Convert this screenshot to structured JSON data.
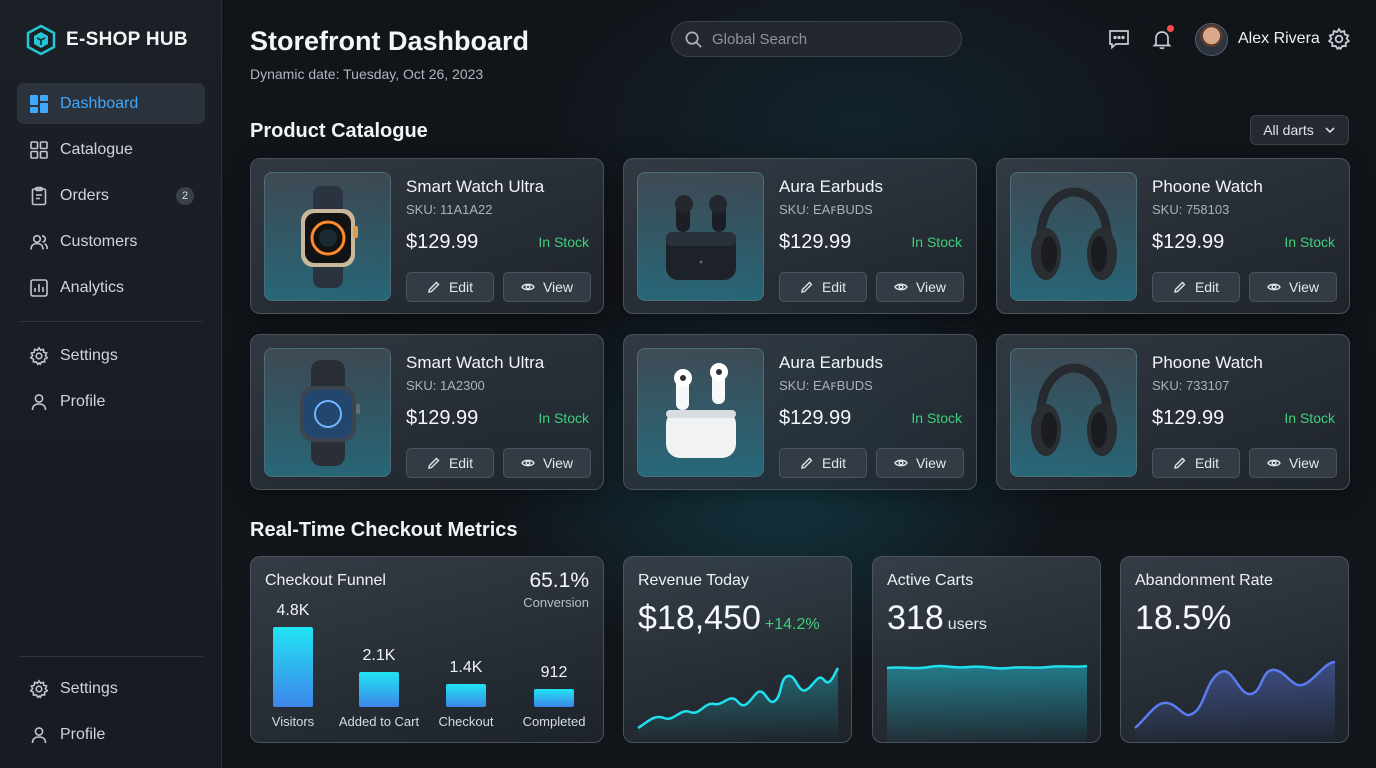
{
  "brand": {
    "name": "E-SHOP HUB"
  },
  "sidebar": {
    "items": [
      {
        "label": "Dashboard",
        "icon": "dashboard-icon",
        "active": true
      },
      {
        "label": "Catalogue",
        "icon": "grid-icon"
      },
      {
        "label": "Orders",
        "icon": "clipboard-icon",
        "badge": "2"
      },
      {
        "label": "Customers",
        "icon": "users-icon"
      },
      {
        "label": "Analytics",
        "icon": "chart-icon"
      }
    ],
    "secondary": [
      {
        "label": "Settings",
        "icon": "gear-icon"
      },
      {
        "label": "Profile",
        "icon": "user-icon"
      }
    ],
    "footer": [
      {
        "label": "Settings",
        "icon": "gear-icon"
      },
      {
        "label": "Profile",
        "icon": "user-icon"
      }
    ]
  },
  "header": {
    "title": "Storefront Dashboard",
    "date": "Dynamic date: Tuesday, Oct 26, 2023",
    "search_placeholder": "Global Search",
    "user_name": "Alex Rivera"
  },
  "catalogue": {
    "title": "Product Catalogue",
    "filter_label": "All darts",
    "products": [
      {
        "name": "Smart Watch Ultra",
        "sku": "SKU: 11A1A22",
        "price": "$129.99",
        "stock": "In Stock",
        "image": "watch-ultra"
      },
      {
        "name": "Aura Earbuds",
        "sku": "SKU: EAꜰBUDS",
        "price": "$129.99",
        "stock": "In Stock",
        "image": "earbuds-black"
      },
      {
        "name": "Phoone Watch",
        "sku": "SKU: 758103",
        "price": "$129.99",
        "stock": "In Stock",
        "image": "headphones"
      },
      {
        "name": "Smart Watch Ultra",
        "sku": "SKU: 1A2300",
        "price": "$129.99",
        "stock": "In Stock",
        "image": "watch-series"
      },
      {
        "name": "Aura Earbuds",
        "sku": "SKU: EAꜰBUDS",
        "price": "$129.99",
        "stock": "In Stock",
        "image": "earbuds-white"
      },
      {
        "name": "Phoone Watch",
        "sku": "SKU: 733107",
        "price": "$129.99",
        "stock": "In Stock",
        "image": "headphones"
      }
    ],
    "edit_label": "Edit",
    "view_label": "View"
  },
  "metrics": {
    "title": "Real-Time Checkout Metrics",
    "funnel": {
      "label": "Checkout Funnel",
      "conversion_value": "65.1%",
      "conversion_label": "Conversion",
      "stages": [
        {
          "label": "Visitors",
          "value_text": "4.8K",
          "value": 4800
        },
        {
          "label": "Added to Cart",
          "value_text": "2.1K",
          "value": 2100
        },
        {
          "label": "Checkout",
          "value_text": "1.4K",
          "value": 1400
        },
        {
          "label": "Completed",
          "value_text": "912",
          "value": 912
        }
      ]
    },
    "revenue": {
      "label": "Revenue Today",
      "value": "$18,450",
      "delta": "+14.2%"
    },
    "carts": {
      "label": "Active Carts",
      "value": "318",
      "unit": "users"
    },
    "abandonment": {
      "label": "Abandonment Rate",
      "value": "18.5%"
    }
  },
  "colors": {
    "accent": "#3ea8ff",
    "positive": "#3ed07a",
    "notification": "#ff4d4f",
    "bar_top": "#21e4f2",
    "bar_bottom": "#3d86ea"
  }
}
